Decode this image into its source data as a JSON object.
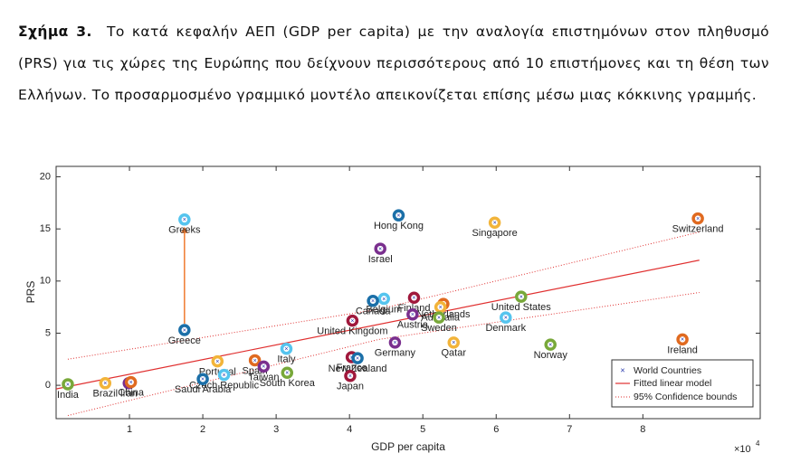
{
  "caption": {
    "label": "Σχήμα 3.",
    "text": "Το κατά κεφαλήν ΑΕΠ (GDP per capita) με την αναλογία επιστημόνων στον πληθυσμό (PRS) για τις χώρες της Ευρώπης που δείχνουν περισσότερους από 10 επιστήμονες και τη θέση των Ελλήνων. Το προσαρμοσμένο γραμμικό μοντέλο απεικονίζεται επίσης μέσω μιας κόκκινης γραμμής."
  },
  "chart_data": {
    "type": "scatter",
    "x_label": "GDP per capita",
    "y_label": "PRS",
    "x_multiplier": "×10",
    "x_multiplier_exponent": "4",
    "xlim": [
      0,
      9.6
    ],
    "ylim": [
      -3.2,
      21
    ],
    "xticks": [
      1,
      2,
      3,
      4,
      5,
      6,
      7,
      8
    ],
    "yticks": [
      0,
      5,
      10,
      15,
      20
    ],
    "legend": "lower right",
    "series": [
      {
        "name": "World Countries",
        "color": "#2233aa",
        "labels": [
          "Greeks",
          "Greece",
          "Hong Kong",
          "Singapore",
          "Switzerland",
          "Israel",
          "Belgium",
          "Canada",
          "Finland",
          "Netherlands",
          "Australia",
          "United States",
          "Austria",
          "Sweden",
          "Denmark",
          "United Kingdom",
          "Germany",
          "Qatar",
          "Norway",
          "Ireland",
          "Italy",
          "Portugal",
          "Spain",
          "Taiwan",
          "France",
          "New Zealand",
          "Japan",
          "Czech Republic",
          "Saudi Arabia",
          "South Korea",
          "India",
          "Brazil",
          "Iran",
          "China"
        ],
        "x": [
          1.75,
          1.75,
          4.67,
          5.98,
          8.75,
          4.42,
          4.47,
          4.32,
          4.88,
          5.28,
          5.24,
          6.34,
          4.86,
          5.22,
          6.13,
          4.04,
          4.62,
          5.42,
          6.74,
          8.54,
          3.14,
          2.2,
          2.71,
          2.83,
          4.03,
          4.11,
          4.01,
          2.29,
          2.0,
          3.15,
          0.16,
          0.67,
          0.99,
          1.02
        ],
        "values": [
          15.9,
          5.3,
          16.3,
          15.6,
          16.0,
          13.1,
          8.3,
          8.1,
          8.4,
          7.8,
          7.5,
          8.5,
          6.8,
          6.5,
          6.5,
          6.2,
          4.1,
          4.1,
          3.9,
          4.4,
          3.5,
          2.3,
          2.4,
          1.8,
          2.7,
          2.6,
          0.9,
          1.0,
          0.6,
          1.2,
          0.1,
          0.2,
          0.2,
          0.3
        ],
        "colors": [
          "#55c4ee",
          "#1b6fa8",
          "#1b6fa8",
          "#f2b43a",
          "#e06a20",
          "#7a2f8e",
          "#55c4ee",
          "#1b6fa8",
          "#a0183c",
          "#e06a20",
          "#f2b43a",
          "#78a83a",
          "#7a2f8e",
          "#78a83a",
          "#55c4ee",
          "#a0183c",
          "#7a2f8e",
          "#f2b43a",
          "#78a83a",
          "#e06a20",
          "#55c4ee",
          "#f2b43a",
          "#e06a20",
          "#7a2f8e",
          "#a0183c",
          "#1b6fa8",
          "#a0183c",
          "#55c4ee",
          "#1b6fa8",
          "#78a83a",
          "#78a83a",
          "#f2b43a",
          "#7a2f8e",
          "#e06a20"
        ]
      },
      {
        "name": "Fitted linear model",
        "color": "#e03030",
        "x": [
          0,
          8.77
        ],
        "values": [
          -0.35,
          12.0
        ]
      },
      {
        "name": "95% Confidence bounds",
        "color": "#e03030",
        "x": [
          0.16,
          4.4,
          8.77
        ],
        "values": [
          2.5,
          7.3,
          14.7
        ],
        "lower": [
          -2.9,
          4.4,
          8.9
        ]
      }
    ],
    "arrow_color": "#f07a30"
  }
}
